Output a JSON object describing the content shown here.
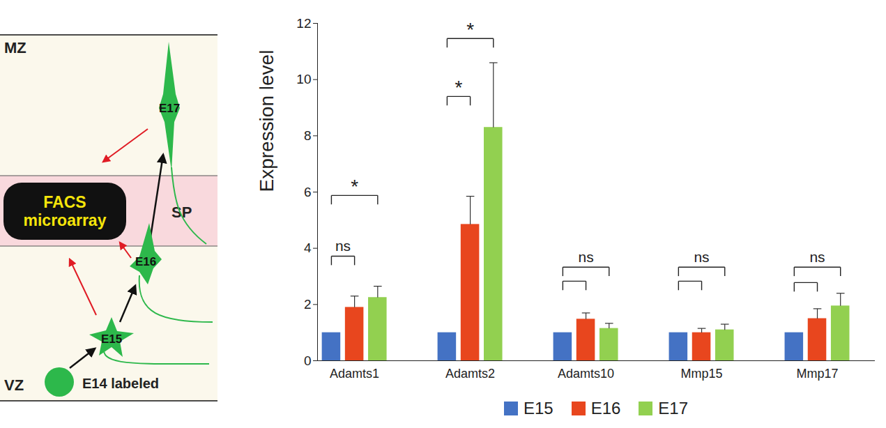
{
  "chart_data": {
    "type": "bar",
    "y_label": "Expression level",
    "categories": [
      "Adamts1",
      "Adamts2",
      "Adamts10",
      "Mmp15",
      "Mmp17"
    ],
    "series": [
      {
        "name": "E15",
        "color": "#4472c4",
        "values": [
          1,
          1,
          1,
          1,
          1
        ],
        "errors": [
          null,
          null,
          null,
          null,
          null
        ]
      },
      {
        "name": "E16",
        "color": "#e8461e",
        "values": [
          1.9,
          4.85,
          1.48,
          1.0,
          1.5
        ],
        "errors": [
          0.4,
          1.0,
          0.22,
          0.15,
          0.35
        ]
      },
      {
        "name": "E17",
        "color": "#92d050",
        "values": [
          2.25,
          8.3,
          1.15,
          1.1,
          1.95
        ],
        "errors": [
          0.4,
          2.3,
          0.18,
          0.2,
          0.45
        ]
      }
    ],
    "significance": [
      {
        "category": "Adamts1",
        "from": "E15",
        "to": "E16",
        "y": 3.72,
        "label": "ns"
      },
      {
        "category": "Adamts1",
        "from": "E15",
        "to": "E17",
        "y": 5.88,
        "label": "*"
      },
      {
        "category": "Adamts2",
        "from": "E15",
        "to": "E16",
        "y": 9.4,
        "label": "*"
      },
      {
        "category": "Adamts2",
        "from": "E15",
        "to": "E17",
        "y": 11.46,
        "label": "*"
      },
      {
        "category": "Adamts10",
        "from": "E15",
        "to": "E16",
        "y": 2.83,
        "label": null
      },
      {
        "category": "Adamts10",
        "from": "E15",
        "to": "E17",
        "y": 3.33,
        "label": "ns"
      },
      {
        "category": "Mmp15",
        "from": "E15",
        "to": "E16",
        "y": 2.83,
        "label": null
      },
      {
        "category": "Mmp15",
        "from": "E15",
        "to": "E17",
        "y": 3.33,
        "label": "ns"
      },
      {
        "category": "Mmp17",
        "from": "E15",
        "to": "E16",
        "y": 2.78,
        "label": null
      },
      {
        "category": "Mmp17",
        "from": "E15",
        "to": "E17",
        "y": 3.33,
        "label": "ns"
      }
    ],
    "ylim": [
      0,
      12
    ],
    "yticks": [
      0,
      2,
      4,
      6,
      8,
      10,
      12
    ],
    "grid": false,
    "legend": "bottom"
  },
  "diagram": {
    "layers": [
      "MZ",
      "SP",
      "VZ"
    ],
    "box": "FACS microarray",
    "cells": [
      "E14 labeled",
      "E15",
      "E16",
      "E17"
    ]
  }
}
